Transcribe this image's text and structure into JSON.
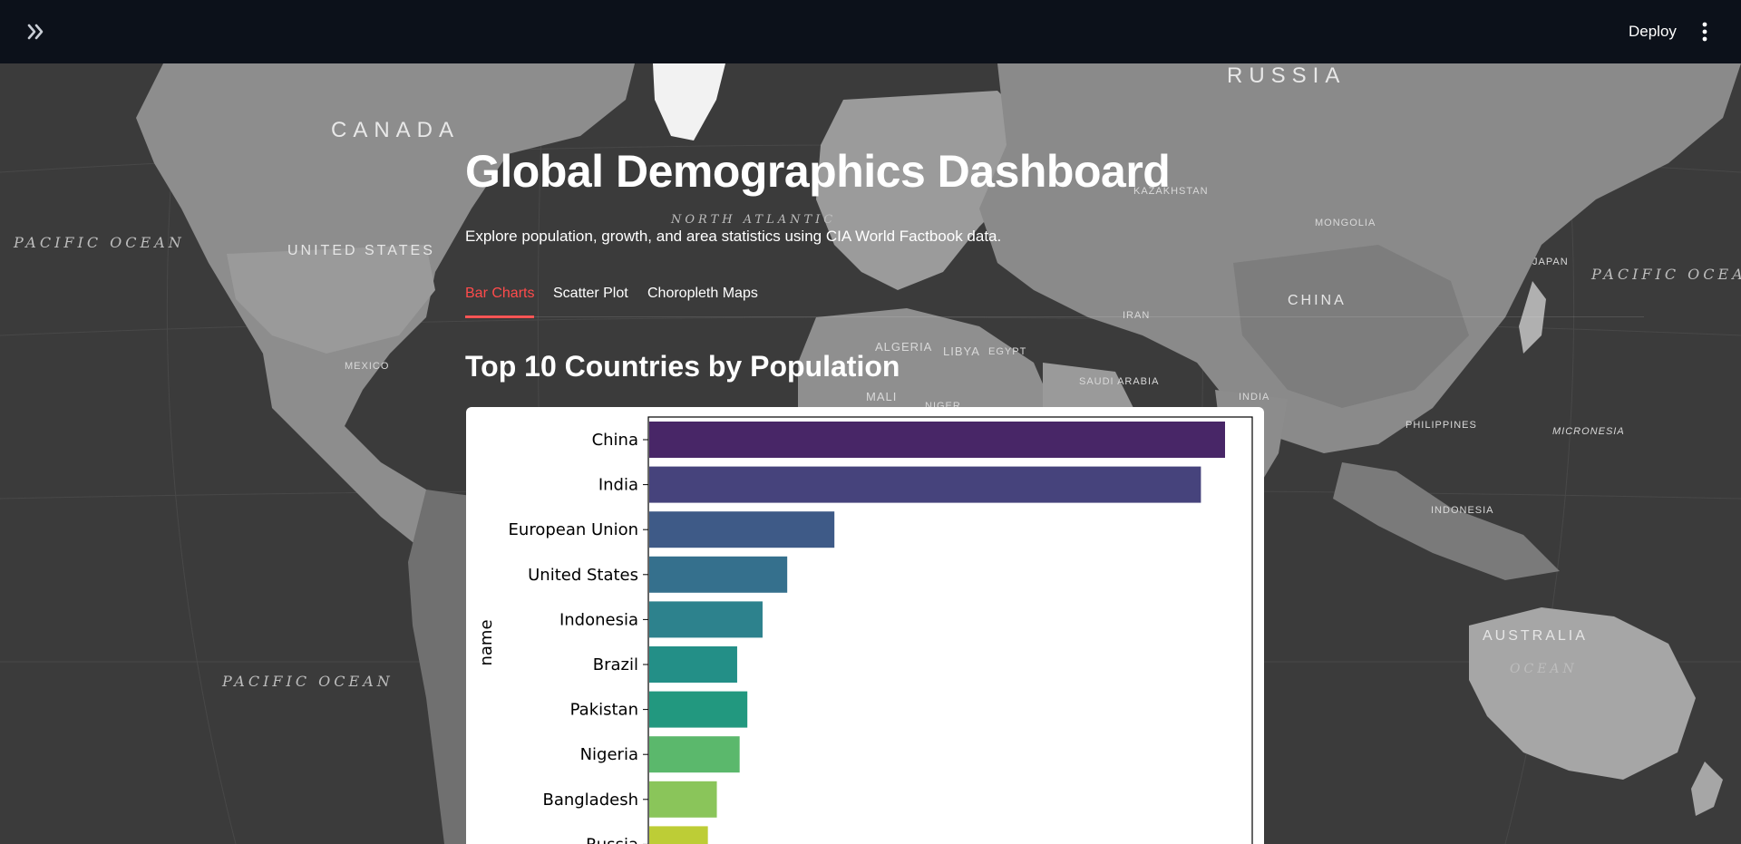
{
  "header": {
    "expand_icon": "chevrons-right-icon",
    "deploy_label": "Deploy",
    "menu_icon": "kebab-menu-icon"
  },
  "map_labels": {
    "canada": "CANADA",
    "russia": "RUSSIA",
    "united_states": "UNITED STATES",
    "china": "CHINA",
    "australia": "AUSTRALIA",
    "mongolia": "MONGOLIA",
    "kazakhstan": "KAZAKHSTAN",
    "indonesia": "INDONESIA",
    "pacific_left": "PACIFIC OCEAN",
    "pacific_right": "PACIFIC OCEAN",
    "pacific_bottom": "PACIFIC OCEAN",
    "north_atlantic": "NORTH ATLANTIC",
    "ocean_right": "OCEAN",
    "algeria": "ALGERIA",
    "libya": "LIBYA",
    "egypt": "EGYPT",
    "mali": "MALI",
    "niger": "NIGER",
    "india": "INDIA",
    "iran": "IRAN",
    "saudi_arabia": "SAUDI ARABIA",
    "mexico": "MEXICO",
    "japan": "JAPAN",
    "philippines": "PHILIPPINES",
    "micronesia": "MICRONESIA"
  },
  "page": {
    "title": "Global Demographics Dashboard",
    "subtitle": "Explore population, growth, and area statistics using CIA World Factbook data."
  },
  "tabs": [
    {
      "label": "Bar Charts",
      "active": true
    },
    {
      "label": "Scatter Plot",
      "active": false
    },
    {
      "label": "Choropleth Maps",
      "active": false
    }
  ],
  "section_title": "Top 10 Countries by Population",
  "chart_data": {
    "type": "bar",
    "orientation": "horizontal",
    "ylabel": "name",
    "categories": [
      "China",
      "India",
      "European Union",
      "United States",
      "Indonesia",
      "Brazil",
      "Pakistan",
      "Nigeria",
      "Bangladesh",
      "Russia"
    ],
    "values": [
      1397897720,
      1339330514,
      449512930,
      334998398,
      275122131,
      213445417,
      238181034,
      219463862,
      164098818,
      142320790
    ],
    "colors": [
      "#482667",
      "#46437c",
      "#3e5a87",
      "#35708d",
      "#2d828d",
      "#238f87",
      "#22987f",
      "#5bb86c",
      "#8ac55a",
      "#bdcd36"
    ]
  }
}
